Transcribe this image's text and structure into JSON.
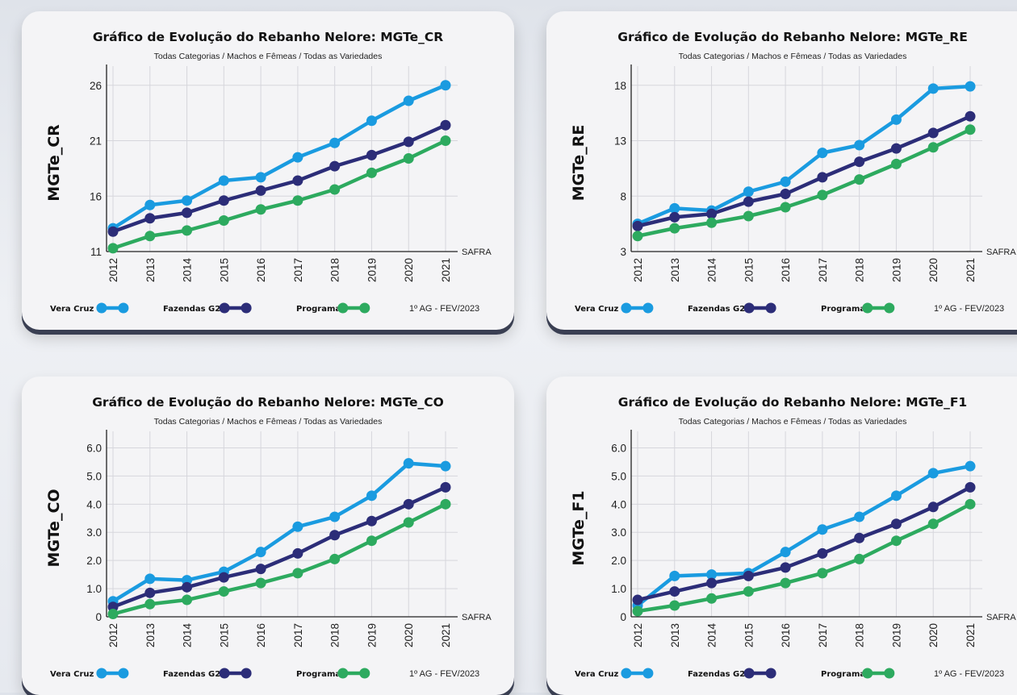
{
  "chart_data": [
    {
      "type": "line",
      "title": "Gráfico de Evolução do Rebanho Nelore: MGTe_CR",
      "subtitle": "Todas Categorias / Machos e Fêmeas / Todas as Variedades",
      "ylabel": "MGTe_CR",
      "xlabel": "SAFRA",
      "footer": "1º AG - FEV/2023",
      "ylim": [
        11,
        27
      ],
      "yticks": [
        11,
        16,
        21,
        26
      ],
      "ytick_labels": [
        "11",
        "16",
        "21",
        "26"
      ],
      "categories": [
        "2012",
        "2013",
        "2014",
        "2015",
        "2016",
        "2017",
        "2018",
        "2019",
        "2020",
        "2021"
      ],
      "series": [
        {
          "name": "Vera Cruz",
          "color": "#1a9be0",
          "values": [
            13.1,
            15.2,
            15.6,
            17.4,
            17.7,
            19.5,
            20.8,
            22.8,
            24.6,
            26.0
          ]
        },
        {
          "name": "Fazendas G2",
          "color": "#2c2d78",
          "values": [
            12.8,
            14.0,
            14.5,
            15.6,
            16.5,
            17.4,
            18.7,
            19.7,
            20.9,
            22.4
          ]
        },
        {
          "name": "Programa",
          "color": "#2daa5f",
          "values": [
            11.3,
            12.4,
            12.9,
            13.8,
            14.8,
            15.6,
            16.6,
            18.1,
            19.4,
            21.0
          ]
        }
      ]
    },
    {
      "type": "line",
      "title": "Gráfico de Evolução do Rebanho Nelore: MGTe_RE",
      "subtitle": "Todas Categorias / Machos e Fêmeas / Todas as Variedades",
      "ylabel": "MGTe_RE",
      "xlabel": "SAFRA",
      "footer": "1º AG - FEV/2023",
      "ylim": [
        3,
        19
      ],
      "yticks": [
        3,
        8,
        13,
        18
      ],
      "ytick_labels": [
        "3",
        "8",
        "13",
        "18"
      ],
      "categories": [
        "2012",
        "2013",
        "2014",
        "2015",
        "2016",
        "2017",
        "2018",
        "2019",
        "2020",
        "2021"
      ],
      "series": [
        {
          "name": "Vera Cruz",
          "color": "#1a9be0",
          "values": [
            5.5,
            6.9,
            6.7,
            8.4,
            9.3,
            11.9,
            12.6,
            14.9,
            17.7,
            17.9
          ]
        },
        {
          "name": "Fazendas G2",
          "color": "#2c2d78",
          "values": [
            5.3,
            6.1,
            6.4,
            7.5,
            8.2,
            9.7,
            11.1,
            12.3,
            13.7,
            15.2
          ]
        },
        {
          "name": "Programa",
          "color": "#2daa5f",
          "values": [
            4.4,
            5.1,
            5.6,
            6.2,
            7.0,
            8.1,
            9.5,
            10.9,
            12.4,
            14.0
          ]
        }
      ]
    },
    {
      "type": "line",
      "title": "Gráfico de Evolução do Rebanho Nelore: MGTe_CO",
      "subtitle": "Todas Categorias / Machos e Fêmeas / Todas as Variedades",
      "ylabel": "MGTe_CO",
      "xlabel": "SAFRA",
      "footer": "1º AG - FEV/2023",
      "ylim": [
        0,
        6.3
      ],
      "yticks": [
        0,
        1,
        2,
        3,
        4,
        5,
        6
      ],
      "ytick_labels": [
        "0",
        "1.0",
        "2.0",
        "3.0",
        "4.0",
        "5.0",
        "6.0"
      ],
      "categories": [
        "2012",
        "2013",
        "2014",
        "2015",
        "2016",
        "2017",
        "2018",
        "2019",
        "2020",
        "2021"
      ],
      "series": [
        {
          "name": "Vera Cruz",
          "color": "#1a9be0",
          "values": [
            0.55,
            1.35,
            1.3,
            1.6,
            2.3,
            3.2,
            3.55,
            4.3,
            5.45,
            5.35
          ]
        },
        {
          "name": "Fazendas G2",
          "color": "#2c2d78",
          "values": [
            0.35,
            0.85,
            1.05,
            1.4,
            1.7,
            2.25,
            2.9,
            3.4,
            4.0,
            4.6
          ]
        },
        {
          "name": "Programa",
          "color": "#2daa5f",
          "values": [
            0.1,
            0.45,
            0.6,
            0.9,
            1.2,
            1.55,
            2.05,
            2.7,
            3.35,
            4.0
          ]
        }
      ]
    },
    {
      "type": "line",
      "title": "Gráfico de Evolução do Rebanho Nelore: MGTe_F1",
      "subtitle": "Todas Categorias / Machos e Fêmeas / Todas as Variedades",
      "ylabel": "MGTe_F1",
      "xlabel": "SAFRA",
      "footer": "1º AG - FEV/2023",
      "ylim": [
        0,
        6.3
      ],
      "yticks": [
        0,
        1,
        2,
        3,
        4,
        5,
        6
      ],
      "ytick_labels": [
        "0",
        "1.0",
        "2.0",
        "3.0",
        "4.0",
        "5.0",
        "6.0"
      ],
      "categories": [
        "2012",
        "2013",
        "2014",
        "2015",
        "2016",
        "2017",
        "2018",
        "2019",
        "2020",
        "2021"
      ],
      "series": [
        {
          "name": "Vera Cruz",
          "color": "#1a9be0",
          "values": [
            0.4,
            1.45,
            1.5,
            1.55,
            2.3,
            3.1,
            3.55,
            4.3,
            5.1,
            5.35
          ]
        },
        {
          "name": "Fazendas G2",
          "color": "#2c2d78",
          "values": [
            0.6,
            0.9,
            1.2,
            1.45,
            1.75,
            2.25,
            2.8,
            3.3,
            3.9,
            4.6
          ]
        },
        {
          "name": "Programa",
          "color": "#2daa5f",
          "values": [
            0.2,
            0.4,
            0.65,
            0.9,
            1.2,
            1.55,
            2.05,
            2.7,
            3.3,
            4.0
          ]
        }
      ]
    }
  ]
}
